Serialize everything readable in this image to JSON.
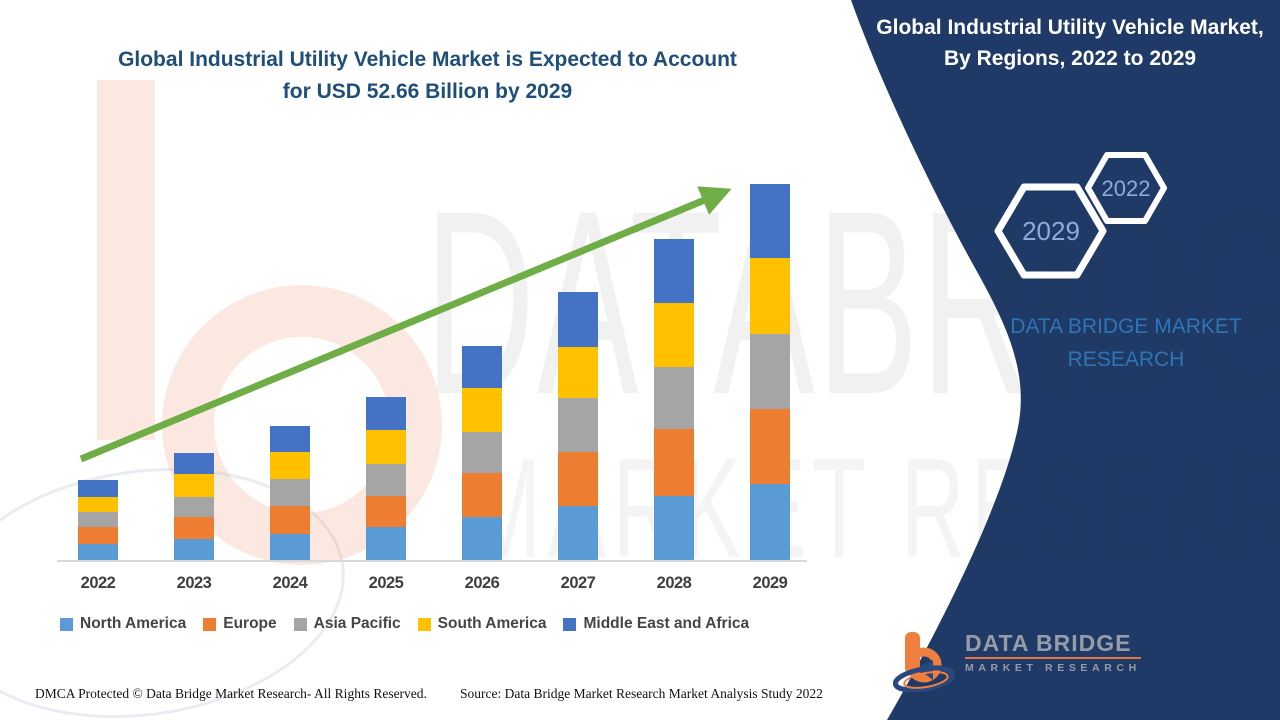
{
  "header": {
    "title_line1": "Global Industrial Utility Vehicle Market is Expected to Account",
    "title_line2": "for USD 52.66 Billion by 2029"
  },
  "panel": {
    "title": "Global Industrial Utility Vehicle Market, By Regions, 2022 to 2029",
    "hexagon_big_label": "2029",
    "hexagon_small_label": "2022",
    "brand_text": "DATA BRIDGE MARKET RESEARCH"
  },
  "watermark": {
    "line1": "DATABRIDGE",
    "line2": "MARKET RESEARCH"
  },
  "logo": {
    "title": "DATA BRIDGE",
    "subtitle": "MARKET RESEARCH"
  },
  "footer": {
    "dmca": "DMCA Protected © Data Bridge Market Research- All Rights Reserved.",
    "source": "Source: Data Bridge Market Research Market Analysis Study 2022"
  },
  "colors": {
    "panel_bg": "#1F3A66",
    "title_text": "#1F4E79",
    "brand_text": "#2E75B6",
    "hexagon_text": "#8EAADB",
    "arrow_green": "#6FAD47",
    "axis_line": "#D8D8D8",
    "label_text": "#3F3F3F"
  },
  "chart_data": {
    "type": "bar",
    "stacked": true,
    "title": "Global Industrial Utility Vehicle Market is Expected to Account for USD 52.66 Billion by 2029",
    "unit": "USD Billion",
    "categories": [
      "2022",
      "2023",
      "2024",
      "2025",
      "2026",
      "2027",
      "2028",
      "2029"
    ],
    "series": [
      {
        "name": "North America",
        "color": "#5B9BD5",
        "values": [
          2.2,
          2.9,
          3.7,
          4.6,
          6.0,
          7.6,
          9.0,
          10.7
        ]
      },
      {
        "name": "Europe",
        "color": "#ED7D31",
        "values": [
          2.4,
          3.1,
          3.9,
          4.4,
          6.2,
          7.5,
          9.4,
          10.5
        ]
      },
      {
        "name": "Asia Pacific",
        "color": "#A5A5A5",
        "values": [
          2.2,
          2.8,
          3.7,
          4.4,
          5.7,
          7.6,
          8.7,
          10.5
        ]
      },
      {
        "name": "South America",
        "color": "#FFC000",
        "values": [
          2.1,
          3.3,
          3.9,
          4.9,
          6.2,
          7.2,
          9.0,
          10.7
        ]
      },
      {
        "name": "Middle East and Africa",
        "color": "#4472C4",
        "values": [
          2.3,
          2.9,
          3.6,
          4.5,
          5.9,
          7.7,
          8.9,
          10.3
        ]
      }
    ],
    "totals": [
      11.2,
      15.0,
      18.8,
      22.8,
      30.0,
      37.6,
      45.0,
      52.66
    ],
    "xlabel": "",
    "ylabel": "",
    "ylim": [
      0,
      54
    ],
    "grid": false,
    "legend_position": "bottom",
    "annotations": [
      "upward growth trend arrow from 2022 to 2029"
    ]
  }
}
